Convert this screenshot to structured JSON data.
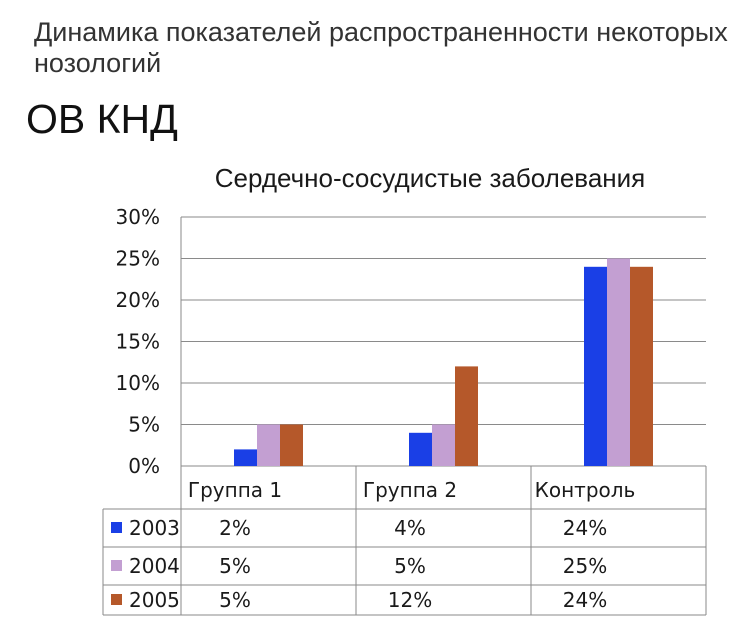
{
  "header": {
    "title": "Динамика показателей распространенности некоторых нозологий",
    "subtitle": "ОВ КНД"
  },
  "chart_data": {
    "type": "bar",
    "title": "Сердечно-сосудистые заболевания",
    "categories": [
      "Группа 1",
      "Группа 2",
      "Контроль"
    ],
    "series": [
      {
        "name": "2003",
        "values": [
          2,
          4,
          24
        ],
        "labels": [
          "2%",
          "4%",
          "24%"
        ],
        "color": "#1a3fe6"
      },
      {
        "name": "2004",
        "values": [
          5,
          5,
          25
        ],
        "labels": [
          "5%",
          "5%",
          "25%"
        ],
        "color": "#c39fd2"
      },
      {
        "name": "2005",
        "values": [
          5,
          12,
          24
        ],
        "labels": [
          "5%",
          "12%",
          "24%"
        ],
        "color": "#b5582a"
      }
    ],
    "y_ticks": [
      "0%",
      "5%",
      "10%",
      "15%",
      "20%",
      "25%",
      "30%"
    ],
    "ylim": [
      0,
      30
    ],
    "grid": true,
    "legend": "data-table"
  }
}
